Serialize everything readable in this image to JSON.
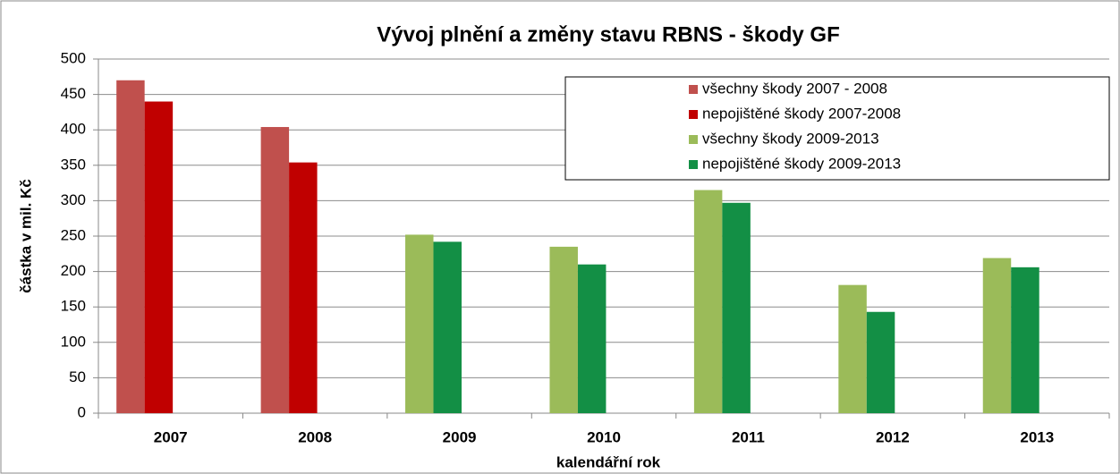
{
  "chart_data": {
    "type": "bar",
    "title": "Vývoj plnění a změny stavu RBNS - škody GF",
    "x_label": "kalendářní rok",
    "y_label": "částka v mil. Kč",
    "categories": [
      "2007",
      "2008",
      "2009",
      "2010",
      "2011",
      "2012",
      "2013"
    ],
    "series": [
      {
        "name": "všechny škody 2007 - 2008",
        "color": "#c0504d",
        "values": [
          470,
          404,
          null,
          null,
          null,
          null,
          null
        ]
      },
      {
        "name": "nepojištěné škody 2007-2008",
        "color": "#c00000",
        "values": [
          440,
          354,
          null,
          null,
          null,
          null,
          null
        ]
      },
      {
        "name": "všechny škody 2009-2013",
        "color": "#9bbb59",
        "values": [
          null,
          null,
          252,
          235,
          315,
          181,
          219
        ]
      },
      {
        "name": "nepojištěné škody 2009-2013",
        "color": "#138f45",
        "values": [
          null,
          null,
          242,
          210,
          297,
          143,
          206
        ]
      }
    ],
    "ylim": [
      0,
      500
    ],
    "yticks": [
      0,
      50,
      100,
      150,
      200,
      250,
      300,
      350,
      400,
      450,
      500
    ],
    "grid": true,
    "legend": "top-right"
  }
}
